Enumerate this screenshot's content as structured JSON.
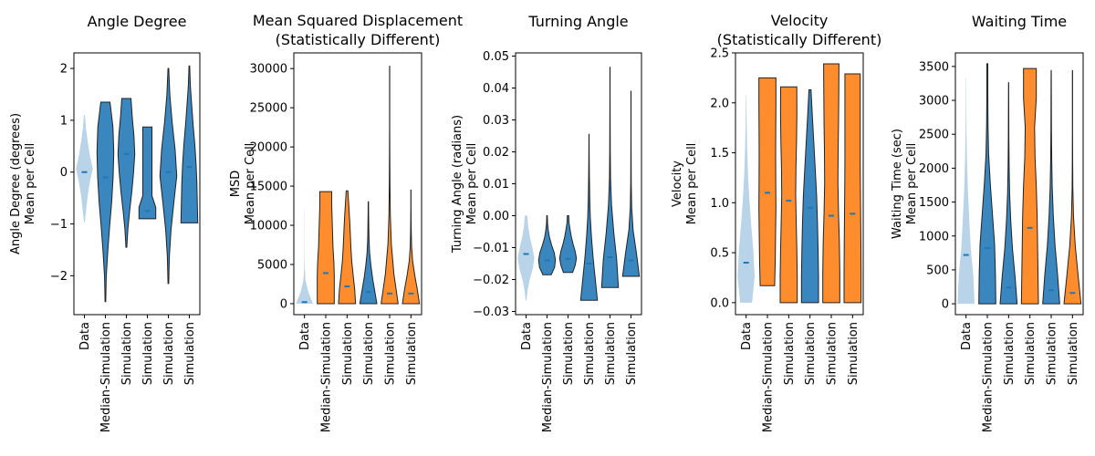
{
  "figure": {
    "background": "#ffffff"
  },
  "colors": {
    "data": "#b9d3e8",
    "blue": "#3a87c0",
    "orange": "#ff8d2e",
    "median": "#1f77b4",
    "edge": "#222222"
  },
  "chart_data": [
    {
      "type": "violin",
      "title": [
        "Angle Degree"
      ],
      "ylabel": [
        "Angle Degree (degrees)",
        "Mean per Cell"
      ],
      "ylim": [
        -2.75,
        2.3
      ],
      "yticks": [
        -2,
        -1,
        0,
        1,
        2
      ],
      "ytick_labels": [
        "−2",
        "−1",
        "0",
        "1",
        "2"
      ],
      "categories": [
        "Data",
        "Median-Simulation",
        "Simulation",
        "Simulation",
        "Simulation",
        "Simulation"
      ],
      "colors": [
        "data",
        "blue",
        "blue",
        "blue",
        "blue",
        "blue"
      ],
      "violins": [
        {
          "min": -0.97,
          "max": 1.1,
          "median": 0.0,
          "widths": [
            0.05,
            0.22,
            0.4,
            0.65,
            1.0,
            0.65,
            0.4,
            0.18,
            0.06
          ]
        },
        {
          "min": -2.5,
          "max": 1.35,
          "median": -0.1,
          "widths": [
            0.04,
            0.1,
            0.28,
            0.5,
            0.75,
            0.92,
            1.0,
            0.9,
            0.55
          ]
        },
        {
          "min": -1.45,
          "max": 1.42,
          "median": 0.35,
          "widths": [
            0.05,
            0.18,
            0.4,
            0.65,
            0.85,
            1.0,
            0.9,
            0.7,
            0.55
          ]
        },
        {
          "min": -0.9,
          "max": 0.87,
          "median": -0.75,
          "widths": [
            1.0,
            1.0,
            0.55,
            0.55,
            0.55,
            0.55,
            0.55,
            0.55,
            0.55
          ]
        },
        {
          "min": -2.15,
          "max": 2.0,
          "median": 0.0,
          "widths": [
            0.04,
            0.12,
            0.32,
            0.65,
            1.0,
            0.8,
            0.45,
            0.18,
            0.04
          ]
        },
        {
          "min": -0.98,
          "max": 2.05,
          "median": 0.1,
          "widths": [
            1.0,
            0.95,
            0.9,
            0.8,
            0.65,
            0.45,
            0.28,
            0.12,
            0.04
          ]
        }
      ]
    },
    {
      "type": "violin",
      "title": [
        "Mean Squared Displacement",
        "(Statistically Different)"
      ],
      "ylabel": [
        "MSD",
        "Mean per Cell"
      ],
      "ylim": [
        -1400,
        32000
      ],
      "yticks": [
        0,
        5000,
        10000,
        15000,
        20000,
        25000,
        30000
      ],
      "ytick_labels": [
        "0",
        "5000",
        "10000",
        "15000",
        "20000",
        "25000",
        "30000"
      ],
      "categories": [
        "Data",
        "Median-Simulation",
        "Simulation",
        "Simulation",
        "Simulation",
        "Simulation"
      ],
      "colors": [
        "data",
        "orange",
        "orange",
        "blue",
        "orange",
        "orange"
      ],
      "violins": [
        {
          "min": 0,
          "max": 12000,
          "median": 200,
          "widths": [
            1.0,
            0.45,
            0.12,
            0.04,
            0.02,
            0.01,
            0.01,
            0.01,
            0.01
          ]
        },
        {
          "min": 0,
          "max": 14300,
          "median": 3900,
          "widths": [
            1.0,
            1.0,
            1.0,
            0.95,
            0.85,
            0.8,
            0.75,
            0.7,
            0.7
          ]
        },
        {
          "min": 0,
          "max": 14400,
          "median": 2200,
          "widths": [
            1.0,
            0.9,
            0.72,
            0.55,
            0.45,
            0.38,
            0.3,
            0.2,
            0.1
          ]
        },
        {
          "min": 0,
          "max": 13000,
          "median": 1500,
          "widths": [
            1.0,
            0.75,
            0.5,
            0.3,
            0.15,
            0.08,
            0.05,
            0.03,
            0.02
          ]
        },
        {
          "min": 0,
          "max": 30300,
          "median": 1300,
          "widths": [
            1.0,
            0.5,
            0.2,
            0.08,
            0.04,
            0.02,
            0.01,
            0.01,
            0.01
          ]
        },
        {
          "min": 0,
          "max": 14500,
          "median": 1300,
          "widths": [
            1.0,
            0.75,
            0.45,
            0.2,
            0.08,
            0.04,
            0.02,
            0.01,
            0.01
          ]
        }
      ]
    },
    {
      "type": "violin",
      "title": [
        "Turning Angle"
      ],
      "ylabel": [
        "Turning Angle (radians)",
        "Mean per Cell"
      ],
      "ylim": [
        -0.031,
        0.051
      ],
      "yticks": [
        -0.03,
        -0.02,
        -0.01,
        0.0,
        0.01,
        0.02,
        0.03,
        0.04,
        0.05
      ],
      "ytick_labels": [
        "−0.03",
        "−0.02",
        "−0.01",
        "0.00",
        "0.01",
        "0.02",
        "0.03",
        "0.04",
        "0.05"
      ],
      "categories": [
        "Data",
        "Median-Simulation",
        "Simulation",
        "Simulation",
        "Simulation",
        "Simulation"
      ],
      "colors": [
        "data",
        "blue",
        "blue",
        "blue",
        "blue",
        "blue"
      ],
      "violins": [
        {
          "min": -0.0265,
          "max": 0.0,
          "median": -0.012,
          "widths": [
            0.05,
            0.2,
            0.45,
            0.8,
            1.0,
            0.75,
            0.45,
            0.25,
            0.15
          ]
        },
        {
          "min": -0.0185,
          "max": 0.0,
          "median": -0.014,
          "widths": [
            0.5,
            0.9,
            1.0,
            0.85,
            0.55,
            0.3,
            0.15,
            0.06,
            0.03
          ]
        },
        {
          "min": -0.0178,
          "max": 0.0,
          "median": -0.0135,
          "widths": [
            0.55,
            0.85,
            1.0,
            0.85,
            0.6,
            0.4,
            0.25,
            0.12,
            0.08
          ]
        },
        {
          "min": -0.0265,
          "max": 0.0255,
          "median": -0.015,
          "widths": [
            1.0,
            0.75,
            0.5,
            0.3,
            0.15,
            0.08,
            0.04,
            0.02,
            0.01
          ]
        },
        {
          "min": -0.0225,
          "max": 0.0465,
          "median": -0.013,
          "widths": [
            1.0,
            0.8,
            0.45,
            0.18,
            0.06,
            0.03,
            0.02,
            0.01,
            0.01
          ]
        },
        {
          "min": -0.019,
          "max": 0.039,
          "median": -0.014,
          "widths": [
            1.0,
            0.65,
            0.25,
            0.08,
            0.03,
            0.02,
            0.01,
            0.01,
            0.01
          ]
        }
      ]
    },
    {
      "type": "violin",
      "title": [
        "Velocity",
        "(Statistically Different)"
      ],
      "ylabel": [
        "Velocity",
        "Mean per Cell"
      ],
      "ylim": [
        -0.12,
        2.5
      ],
      "yticks": [
        0.0,
        0.5,
        1.0,
        1.5,
        2.0,
        2.5
      ],
      "ytick_labels": [
        "0.0",
        "0.5",
        "1.0",
        "1.5",
        "2.0",
        "2.5"
      ],
      "categories": [
        "Data",
        "Median-Simulation",
        "Simulation",
        "Simulation",
        "Simulation",
        "Simulation"
      ],
      "colors": [
        "data",
        "orange",
        "orange",
        "blue",
        "orange",
        "orange"
      ],
      "violins": [
        {
          "min": 0.0,
          "max": 2.07,
          "median": 0.4,
          "widths": [
            0.7,
            1.0,
            0.85,
            0.6,
            0.38,
            0.22,
            0.12,
            0.06,
            0.03
          ]
        },
        {
          "min": 0.17,
          "max": 2.25,
          "median": 1.1,
          "widths": [
            0.85,
            0.92,
            0.96,
            1.0,
            0.98,
            0.97,
            0.98,
            1.0,
            1.0
          ]
        },
        {
          "min": 0.0,
          "max": 2.16,
          "median": 1.02,
          "widths": [
            1.0,
            1.0,
            0.95,
            0.88,
            0.82,
            0.85,
            0.92,
            0.96,
            0.95
          ]
        },
        {
          "min": 0.0,
          "max": 2.13,
          "median": 0.95,
          "widths": [
            1.0,
            1.0,
            0.95,
            0.88,
            0.78,
            0.62,
            0.45,
            0.28,
            0.12
          ]
        },
        {
          "min": 0.0,
          "max": 2.39,
          "median": 0.87,
          "widths": [
            1.0,
            1.0,
            0.95,
            0.85,
            0.78,
            0.8,
            0.85,
            0.88,
            0.9
          ]
        },
        {
          "min": 0.0,
          "max": 2.29,
          "median": 0.89,
          "widths": [
            1.0,
            1.0,
            0.98,
            0.95,
            0.92,
            0.9,
            0.9,
            0.9,
            0.9
          ]
        }
      ]
    },
    {
      "type": "violin",
      "title": [
        "Waiting Time"
      ],
      "ylabel": [
        "Waiting Time (sec)",
        "Mean per Cell"
      ],
      "ylim": [
        -160,
        3700
      ],
      "yticks": [
        0,
        500,
        1000,
        1500,
        2000,
        2500,
        3000,
        3500
      ],
      "ytick_labels": [
        "0",
        "500",
        "1000",
        "1500",
        "2000",
        "2500",
        "3000",
        "3500"
      ],
      "categories": [
        "Data",
        "Median-Simulation",
        "Simulation",
        "Simulation",
        "Simulation",
        "Simulation"
      ],
      "colors": [
        "data",
        "blue",
        "blue",
        "orange",
        "blue",
        "orange"
      ],
      "violins": [
        {
          "min": 0,
          "max": 3330,
          "median": 720,
          "widths": [
            1.0,
            0.85,
            0.55,
            0.38,
            0.22,
            0.12,
            0.06,
            0.03,
            0.02
          ]
        },
        {
          "min": 0,
          "max": 3540,
          "median": 820,
          "widths": [
            1.0,
            0.95,
            0.85,
            0.6,
            0.35,
            0.15,
            0.08,
            0.06,
            0.06
          ]
        },
        {
          "min": 0,
          "max": 3260,
          "median": 240,
          "widths": [
            1.0,
            0.75,
            0.45,
            0.25,
            0.12,
            0.06,
            0.03,
            0.02,
            0.01
          ]
        },
        {
          "min": 0,
          "max": 3470,
          "median": 1120,
          "widths": [
            1.0,
            0.95,
            0.9,
            0.85,
            0.75,
            0.6,
            0.55,
            0.75,
            0.75
          ]
        },
        {
          "min": 0,
          "max": 3440,
          "median": 200,
          "widths": [
            1.0,
            0.75,
            0.45,
            0.25,
            0.12,
            0.06,
            0.03,
            0.02,
            0.01
          ]
        },
        {
          "min": 0,
          "max": 3440,
          "median": 160,
          "widths": [
            1.0,
            0.65,
            0.32,
            0.12,
            0.04,
            0.02,
            0.01,
            0.01,
            0.01
          ]
        }
      ]
    }
  ]
}
